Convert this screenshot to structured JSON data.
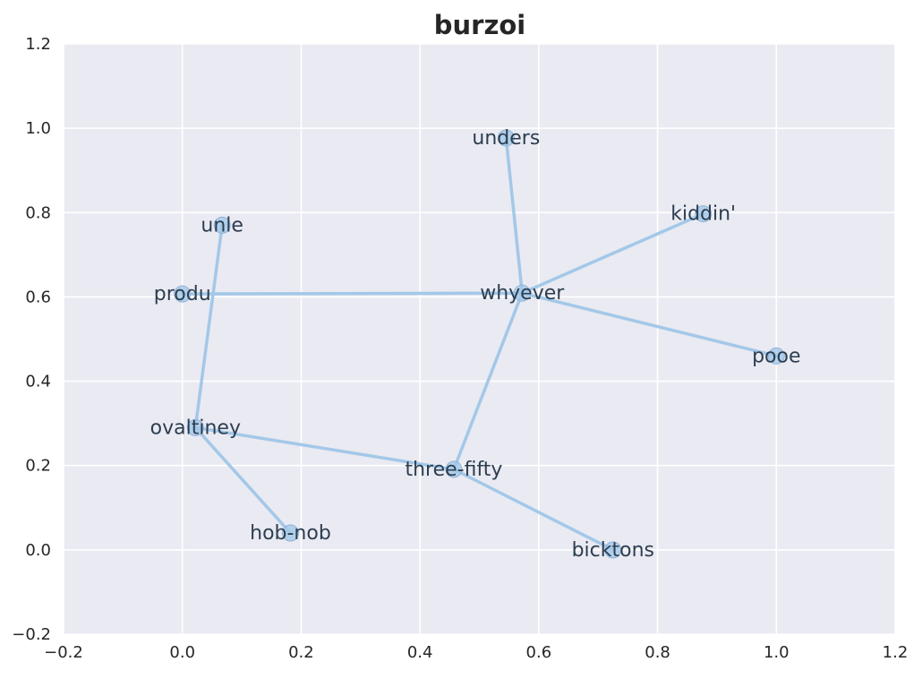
{
  "chart_data": {
    "type": "network",
    "title": "burzoi",
    "xlim": [
      -0.2,
      1.2
    ],
    "ylim": [
      -0.2,
      1.2
    ],
    "x_ticks": [
      -0.2,
      0.0,
      0.2,
      0.4,
      0.6,
      0.8,
      1.0,
      1.2
    ],
    "y_ticks": [
      -0.2,
      0.0,
      0.2,
      0.4,
      0.6,
      0.8,
      1.0,
      1.2
    ],
    "x_tick_labels": [
      "−0.2",
      "0.0",
      "0.2",
      "0.4",
      "0.6",
      "0.8",
      "1.0",
      "1.2"
    ],
    "y_tick_labels": [
      "−0.2",
      "0.0",
      "0.2",
      "0.4",
      "0.6",
      "0.8",
      "1.0",
      "1.2"
    ],
    "grid": true,
    "colors": {
      "background": "#eaeaf2",
      "grid": "#ffffff",
      "edge": "#a3c8e8",
      "node_fill": "#a3c8e8",
      "node_stroke": "#8fb3d6",
      "label": "#2c3e50"
    },
    "nodes": [
      {
        "id": "unders",
        "x": 0.545,
        "y": 0.977
      },
      {
        "id": "kiddin'",
        "x": 0.877,
        "y": 0.797
      },
      {
        "id": "unle",
        "x": 0.067,
        "y": 0.77
      },
      {
        "id": "produ",
        "x": 0.0,
        "y": 0.607
      },
      {
        "id": "whyever",
        "x": 0.572,
        "y": 0.609
      },
      {
        "id": "pooe",
        "x": 1.0,
        "y": 0.46
      },
      {
        "id": "ovaltiney",
        "x": 0.022,
        "y": 0.29
      },
      {
        "id": "three-fifty",
        "x": 0.457,
        "y": 0.191
      },
      {
        "id": "hob-nob",
        "x": 0.182,
        "y": 0.04
      },
      {
        "id": "bicktons",
        "x": 0.725,
        "y": 0.0
      }
    ],
    "edges": [
      [
        "unders",
        "whyever"
      ],
      [
        "kiddin'",
        "whyever"
      ],
      [
        "produ",
        "whyever"
      ],
      [
        "pooe",
        "whyever"
      ],
      [
        "three-fifty",
        "whyever"
      ],
      [
        "unle",
        "ovaltiney"
      ],
      [
        "ovaltiney",
        "three-fifty"
      ],
      [
        "ovaltiney",
        "hob-nob"
      ],
      [
        "three-fifty",
        "bicktons"
      ]
    ]
  }
}
